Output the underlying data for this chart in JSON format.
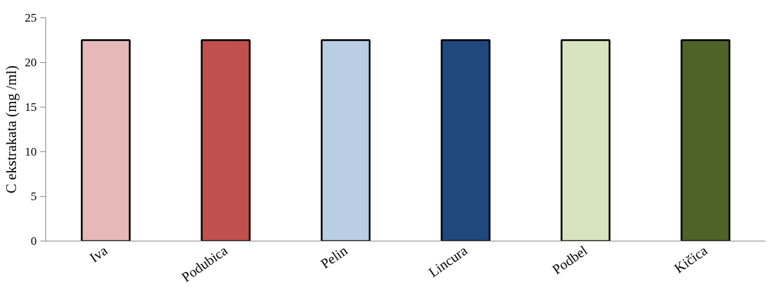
{
  "chart_data": {
    "type": "bar",
    "ylabel": "C ekstrakata (mg /ml)",
    "categories": [
      "Iva",
      "Podubica",
      "Pelin",
      "Lincura",
      "Podbel",
      "Kičica"
    ],
    "values": [
      22.5,
      22.5,
      22.5,
      22.5,
      22.5,
      22.5
    ],
    "colors": [
      "#e6b9b8",
      "#c0504d",
      "#b9cde5",
      "#1f497d",
      "#d7e4bd",
      "#4f6228"
    ],
    "ylim": [
      0,
      25
    ],
    "yticks": [
      0,
      5,
      10,
      15,
      20,
      25
    ],
    "grid": false
  }
}
